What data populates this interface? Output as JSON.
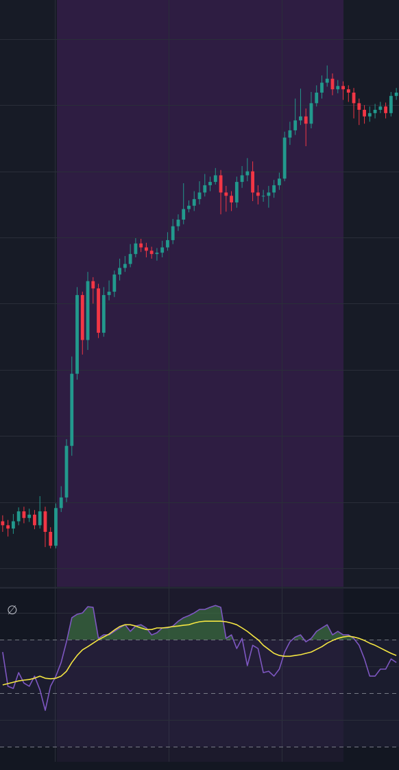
{
  "chart_data": [
    {
      "type": "candlestick",
      "up_color": "#22998d",
      "down_color": "#f23645",
      "ylim": [
        -2.8,
        85.9
      ],
      "yticks": [
        0,
        10,
        20,
        30,
        40,
        50,
        60,
        70,
        80
      ],
      "grid": true,
      "open": [
        7.1,
        6.5,
        6.0,
        7.1,
        8.6,
        7.6,
        8.1,
        6.5,
        8.6,
        5.5,
        3.4,
        9.1,
        10.7,
        18.5,
        29.4,
        41.3,
        34.5,
        43.4,
        42.3,
        35.6,
        41.3,
        41.8,
        44.4,
        45.4,
        46.0,
        47.5,
        49.1,
        48.5,
        48.0,
        47.5,
        47.7,
        48.5,
        49.6,
        51.7,
        52.7,
        54.3,
        54.8,
        55.8,
        56.8,
        57.9,
        58.4,
        59.4,
        56.8,
        56.3,
        55.3,
        58.4,
        59.4,
        60.0,
        56.8,
        56.3,
        56.3,
        56.8,
        57.9,
        58.9,
        65.1,
        66.2,
        67.7,
        68.3,
        67.2,
        70.3,
        71.9,
        73.4,
        74.0,
        72.4,
        72.9,
        72.4,
        71.9,
        70.3,
        69.3,
        68.3,
        68.8,
        69.3,
        69.8,
        68.8,
        71.4
      ],
      "high": [
        8.0,
        7.3,
        8.2,
        9.2,
        9.3,
        9.0,
        8.8,
        10.9,
        9.3,
        6.2,
        9.8,
        12.4,
        19.5,
        32.0,
        42.5,
        41.8,
        44.8,
        44.0,
        43.0,
        42.5,
        43.5,
        45.0,
        46.8,
        47.2,
        49.0,
        49.9,
        49.8,
        49.2,
        48.6,
        48.4,
        49.5,
        50.8,
        52.8,
        53.5,
        58.2,
        55.6,
        57.0,
        58.5,
        59.6,
        59.2,
        60.5,
        60.2,
        57.8,
        57.0,
        59.2,
        60.8,
        62.0,
        61.5,
        57.9,
        57.2,
        57.8,
        58.7,
        59.8,
        66.0,
        67.5,
        71.0,
        72.5,
        69.5,
        72.0,
        73.0,
        74.5,
        76.0,
        74.8,
        73.8,
        73.6,
        73.0,
        72.6,
        71.0,
        70.0,
        69.8,
        70.2,
        70.5,
        70.4,
        72.0,
        72.6
      ],
      "low": [
        5.5,
        4.8,
        5.2,
        6.5,
        6.8,
        7.0,
        5.9,
        6.0,
        3.2,
        3.0,
        3.0,
        8.5,
        10.0,
        17.0,
        28.5,
        32.3,
        33.0,
        40.0,
        34.8,
        35.0,
        40.5,
        41.0,
        43.5,
        44.8,
        45.5,
        47.0,
        47.8,
        47.0,
        46.8,
        46.5,
        47.0,
        48.0,
        49.0,
        51.0,
        52.0,
        53.8,
        54.0,
        55.0,
        56.2,
        57.0,
        58.0,
        53.5,
        53.9,
        54.0,
        54.5,
        57.5,
        58.5,
        55.5,
        55.0,
        55.4,
        54.5,
        56.0,
        57.2,
        58.5,
        64.0,
        65.5,
        67.0,
        63.8,
        66.5,
        69.8,
        71.0,
        72.8,
        71.5,
        71.8,
        70.8,
        70.5,
        68.0,
        67.0,
        67.2,
        67.5,
        68.0,
        68.8,
        68.0,
        68.3,
        70.8
      ],
      "close": [
        6.5,
        6.0,
        7.1,
        8.6,
        7.6,
        8.1,
        6.5,
        8.6,
        5.5,
        3.4,
        9.1,
        10.7,
        18.5,
        29.4,
        41.3,
        34.5,
        43.4,
        42.3,
        35.6,
        41.3,
        41.8,
        44.4,
        45.4,
        46.0,
        47.5,
        49.1,
        48.5,
        48.0,
        47.5,
        47.7,
        48.5,
        49.6,
        51.7,
        52.7,
        54.3,
        54.8,
        55.8,
        56.8,
        57.9,
        58.4,
        59.4,
        56.8,
        56.3,
        55.3,
        58.4,
        59.4,
        60.0,
        56.8,
        56.3,
        56.3,
        56.8,
        57.9,
        58.9,
        65.1,
        66.2,
        67.7,
        68.3,
        67.2,
        70.3,
        71.9,
        73.4,
        74.0,
        72.4,
        72.9,
        72.4,
        71.9,
        70.3,
        69.3,
        68.3,
        68.8,
        69.3,
        69.8,
        68.8,
        71.4,
        71.9
      ]
    },
    {
      "type": "line",
      "label": "∅",
      "ylim": [
        24.4,
        89.0
      ],
      "yticks": [
        40,
        60,
        80
      ],
      "levels": [
        30,
        50,
        70
      ],
      "overbought_fill": "#3f7d43",
      "series": [
        {
          "color": "#7e57c2",
          "values": [
            65.4,
            52.6,
            51.8,
            57.7,
            53.8,
            52.6,
            56.4,
            51.3,
            43.6,
            52.6,
            56.4,
            61.5,
            69.2,
            78.2,
            79.5,
            80.0,
            82.3,
            82.1,
            70.5,
            71.8,
            71.8,
            73.1,
            74.4,
            75.6,
            73.1,
            75.1,
            75.6,
            74.4,
            71.8,
            72.6,
            74.4,
            74.4,
            75.1,
            76.9,
            78.2,
            79.0,
            80.0,
            81.3,
            81.3,
            82.1,
            82.8,
            82.1,
            70.5,
            71.8,
            66.7,
            70.5,
            60.3,
            67.9,
            66.7,
            57.7,
            58.2,
            56.4,
            59.0,
            65.4,
            69.2,
            71.0,
            71.8,
            69.2,
            70.5,
            73.1,
            74.4,
            75.6,
            71.8,
            73.1,
            71.8,
            71.8,
            70.5,
            67.9,
            62.8,
            56.4,
            56.4,
            59.0,
            59.0,
            62.8,
            61.5
          ]
        },
        {
          "color": "#f5e642",
          "values": [
            53.1,
            53.6,
            54.1,
            54.6,
            54.9,
            55.1,
            55.6,
            56.4,
            55.6,
            55.4,
            55.6,
            56.4,
            58.2,
            61.5,
            64.1,
            66.2,
            67.4,
            68.7,
            70.0,
            71.0,
            72.1,
            73.6,
            74.9,
            75.6,
            75.6,
            75.1,
            74.4,
            73.8,
            73.8,
            74.4,
            74.4,
            74.6,
            74.9,
            75.1,
            75.4,
            75.6,
            76.2,
            76.7,
            76.9,
            76.9,
            76.9,
            76.9,
            76.7,
            76.2,
            75.6,
            74.4,
            73.1,
            71.5,
            70.0,
            67.9,
            66.4,
            64.9,
            64.1,
            63.8,
            63.8,
            64.1,
            64.4,
            64.9,
            65.4,
            66.4,
            67.4,
            68.7,
            69.7,
            70.5,
            71.0,
            71.3,
            71.0,
            70.5,
            69.7,
            68.7,
            67.9,
            66.9,
            65.9,
            64.9,
            64.1
          ]
        }
      ]
    }
  ]
}
